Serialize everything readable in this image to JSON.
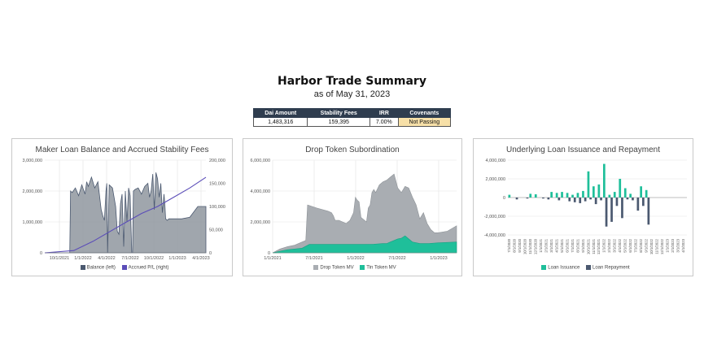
{
  "header": {
    "title": "Harbor Trade Summary",
    "subtitle": "as of May 31, 2023"
  },
  "summary": {
    "columns": [
      "Dai Amount",
      "Stability Fees",
      "IRR",
      "Covenants"
    ],
    "values": [
      "1,483,316",
      "159,395",
      "7.00%",
      "Not Passing"
    ]
  },
  "colors": {
    "slate": "#8f979f",
    "navy": "#4b5970",
    "purple": "#5b4db8",
    "teal": "#1fbf9a",
    "gray": "#a9adb2",
    "flag": "#f7e0a8"
  },
  "chart_data": [
    {
      "type": "area",
      "title": "Maker Loan Balance and Accrued Stability Fees",
      "x_ticks": [
        "10/1/2021",
        "1/1/2022",
        "4/1/2022",
        "7/1/2022",
        "10/1/2022",
        "1/1/2023",
        "4/1/2023"
      ],
      "y_left_ticks": [
        "0",
        "1,000,000",
        "2,000,000",
        "3,000,000"
      ],
      "y_right_ticks": [
        "0",
        "50,000",
        "100,000",
        "150,000",
        "200,000"
      ],
      "ylim_left": [
        0,
        3000000
      ],
      "ylim_right": [
        0,
        200000
      ],
      "legend": [
        "Balance (left)",
        "Accrued P/L (right)"
      ],
      "series": [
        {
          "name": "Balance (left)",
          "axis": "left",
          "x": [
            0.0,
            0.08,
            0.155,
            0.16,
            0.17,
            0.19,
            0.21,
            0.23,
            0.25,
            0.26,
            0.27,
            0.29,
            0.31,
            0.33,
            0.35,
            0.36,
            0.37,
            0.38,
            0.385,
            0.39,
            0.4,
            0.42,
            0.44,
            0.45,
            0.46,
            0.47,
            0.48,
            0.49,
            0.5,
            0.51,
            0.52,
            0.53,
            0.54,
            0.545,
            0.55,
            0.56,
            0.58,
            0.6,
            0.62,
            0.64,
            0.65,
            0.66,
            0.67,
            0.68,
            0.69,
            0.7,
            0.71,
            0.72,
            0.73,
            0.74,
            0.745,
            0.75,
            0.76,
            0.77,
            0.78,
            0.8,
            0.85,
            0.9,
            0.95,
            1.0
          ],
          "values": [
            0,
            0,
            0,
            2000000,
            1950000,
            2100000,
            1850000,
            2200000,
            1900000,
            2300000,
            2150000,
            2450000,
            2100000,
            2300000,
            1400000,
            1200000,
            1050000,
            2000000,
            2250000,
            0,
            2200000,
            2100000,
            1500000,
            700000,
            600000,
            1600000,
            1900000,
            200000,
            2000000,
            1000000,
            2100000,
            1850000,
            0,
            0,
            2000000,
            2050000,
            2100000,
            1900000,
            2150000,
            2250000,
            1800000,
            2000000,
            2550000,
            1400000,
            2600000,
            2400000,
            1800000,
            2250000,
            1300000,
            1900000,
            1600000,
            1100000,
            1050000,
            1100000,
            1100000,
            1100000,
            1100000,
            1150000,
            1500000,
            1500000
          ]
        },
        {
          "name": "Accrued P/L (right)",
          "axis": "right",
          "x": [
            0.0,
            0.18,
            0.3,
            0.4,
            0.5,
            0.6,
            0.7,
            0.8,
            0.9,
            1.0
          ],
          "values": [
            0,
            5000,
            25000,
            45000,
            65000,
            85000,
            100000,
            120000,
            140000,
            163000
          ]
        }
      ]
    },
    {
      "type": "area",
      "title": "Drop Token Subordination",
      "x_ticks": [
        "1/1/2021",
        "7/1/2021",
        "1/1/2022",
        "7/1/2022",
        "1/1/2023"
      ],
      "y_ticks": [
        "0",
        "2,000,000",
        "4,000,000",
        "6,000,000"
      ],
      "ylim": [
        0,
        6000000
      ],
      "legend": [
        "Drop Token MV",
        "Tin Token MV"
      ],
      "series": [
        {
          "name": "Drop Token MV",
          "x": [
            0.0,
            0.04,
            0.08,
            0.12,
            0.16,
            0.18,
            0.19,
            0.24,
            0.3,
            0.32,
            0.33,
            0.34,
            0.36,
            0.38,
            0.4,
            0.42,
            0.44,
            0.45,
            0.46,
            0.47,
            0.48,
            0.49,
            0.5,
            0.51,
            0.52,
            0.53,
            0.54,
            0.55,
            0.56,
            0.58,
            0.6,
            0.62,
            0.64,
            0.66,
            0.68,
            0.7,
            0.72,
            0.74,
            0.76,
            0.78,
            0.8,
            0.82,
            0.84,
            0.86,
            0.88,
            0.9,
            0.95,
            1.0
          ],
          "values": [
            0,
            250000,
            400000,
            500000,
            700000,
            800000,
            3100000,
            2900000,
            2700000,
            2600000,
            2400000,
            2100000,
            2100000,
            2000000,
            1900000,
            2100000,
            2600000,
            3600000,
            3400000,
            3300000,
            2300000,
            2200000,
            2100000,
            2000000,
            2900000,
            3100000,
            3900000,
            4100000,
            3900000,
            4400000,
            4600000,
            4700000,
            4900000,
            5100000,
            4200000,
            3900000,
            4300000,
            4200000,
            3600000,
            3100000,
            2200000,
            2600000,
            1900000,
            1500000,
            1300000,
            1300000,
            1400000,
            1750000
          ]
        },
        {
          "name": "Tin Token MV",
          "x": [
            0.0,
            0.04,
            0.08,
            0.12,
            0.16,
            0.2,
            0.3,
            0.4,
            0.5,
            0.55,
            0.6,
            0.62,
            0.64,
            0.66,
            0.68,
            0.7,
            0.72,
            0.74,
            0.76,
            0.8,
            0.85,
            0.9,
            1.0
          ],
          "values": [
            0,
            100000,
            200000,
            250000,
            300000,
            550000,
            550000,
            550000,
            550000,
            560000,
            600000,
            600000,
            700000,
            800000,
            900000,
            950000,
            1100000,
            900000,
            700000,
            600000,
            600000,
            650000,
            700000
          ]
        }
      ]
    },
    {
      "type": "bar",
      "title": "Underlying Loan Issuance and Repayment",
      "categories": [
        "7/1/2020",
        "8/1/2020",
        "9/1/2020",
        "10/1/2020",
        "11/1/2020",
        "12/1/2020",
        "1/1/2021",
        "2/1/2021",
        "3/1/2021",
        "4/1/2021",
        "5/1/2021",
        "6/1/2021",
        "7/1/2021",
        "8/1/2021",
        "9/1/2021",
        "10/1/2021",
        "11/1/2021",
        "12/1/2021",
        "1/1/2022",
        "2/1/2022",
        "3/1/2022",
        "4/1/2022",
        "5/1/2022",
        "6/1/2022",
        "7/1/2022",
        "8/1/2022",
        "9/1/2022",
        "10/1/2022",
        "11/1/2022",
        "12/1/2022",
        "1/1/2023",
        "2/1/2023",
        "3/1/2023",
        "4/1/2023"
      ],
      "y_ticks": [
        "-4,000,000",
        "-2,000,000",
        "0",
        "2,000,000",
        "4,000,000"
      ],
      "ylim": [
        -4000000,
        4000000
      ],
      "legend": [
        "Loan Issuance",
        "Loan Repayment"
      ],
      "series": [
        {
          "name": "Loan Issuance",
          "values": [
            300000,
            0,
            0,
            0,
            400000,
            350000,
            0,
            0,
            600000,
            500000,
            600000,
            500000,
            300000,
            500000,
            700000,
            2800000,
            1200000,
            1400000,
            3600000,
            300000,
            600000,
            2000000,
            1000000,
            400000,
            0,
            1200000,
            800000,
            0,
            0,
            0,
            0,
            0,
            0,
            0
          ]
        },
        {
          "name": "Loan Repayment",
          "values": [
            0,
            -200000,
            0,
            -100000,
            0,
            0,
            -100000,
            -200000,
            0,
            -300000,
            0,
            -400000,
            -500000,
            -600000,
            -400000,
            -200000,
            -700000,
            -300000,
            -3100000,
            -2600000,
            -900000,
            -2200000,
            -200000,
            -300000,
            -1400000,
            -900000,
            -2900000,
            0,
            0,
            0,
            0,
            0,
            0,
            0
          ]
        }
      ]
    }
  ]
}
